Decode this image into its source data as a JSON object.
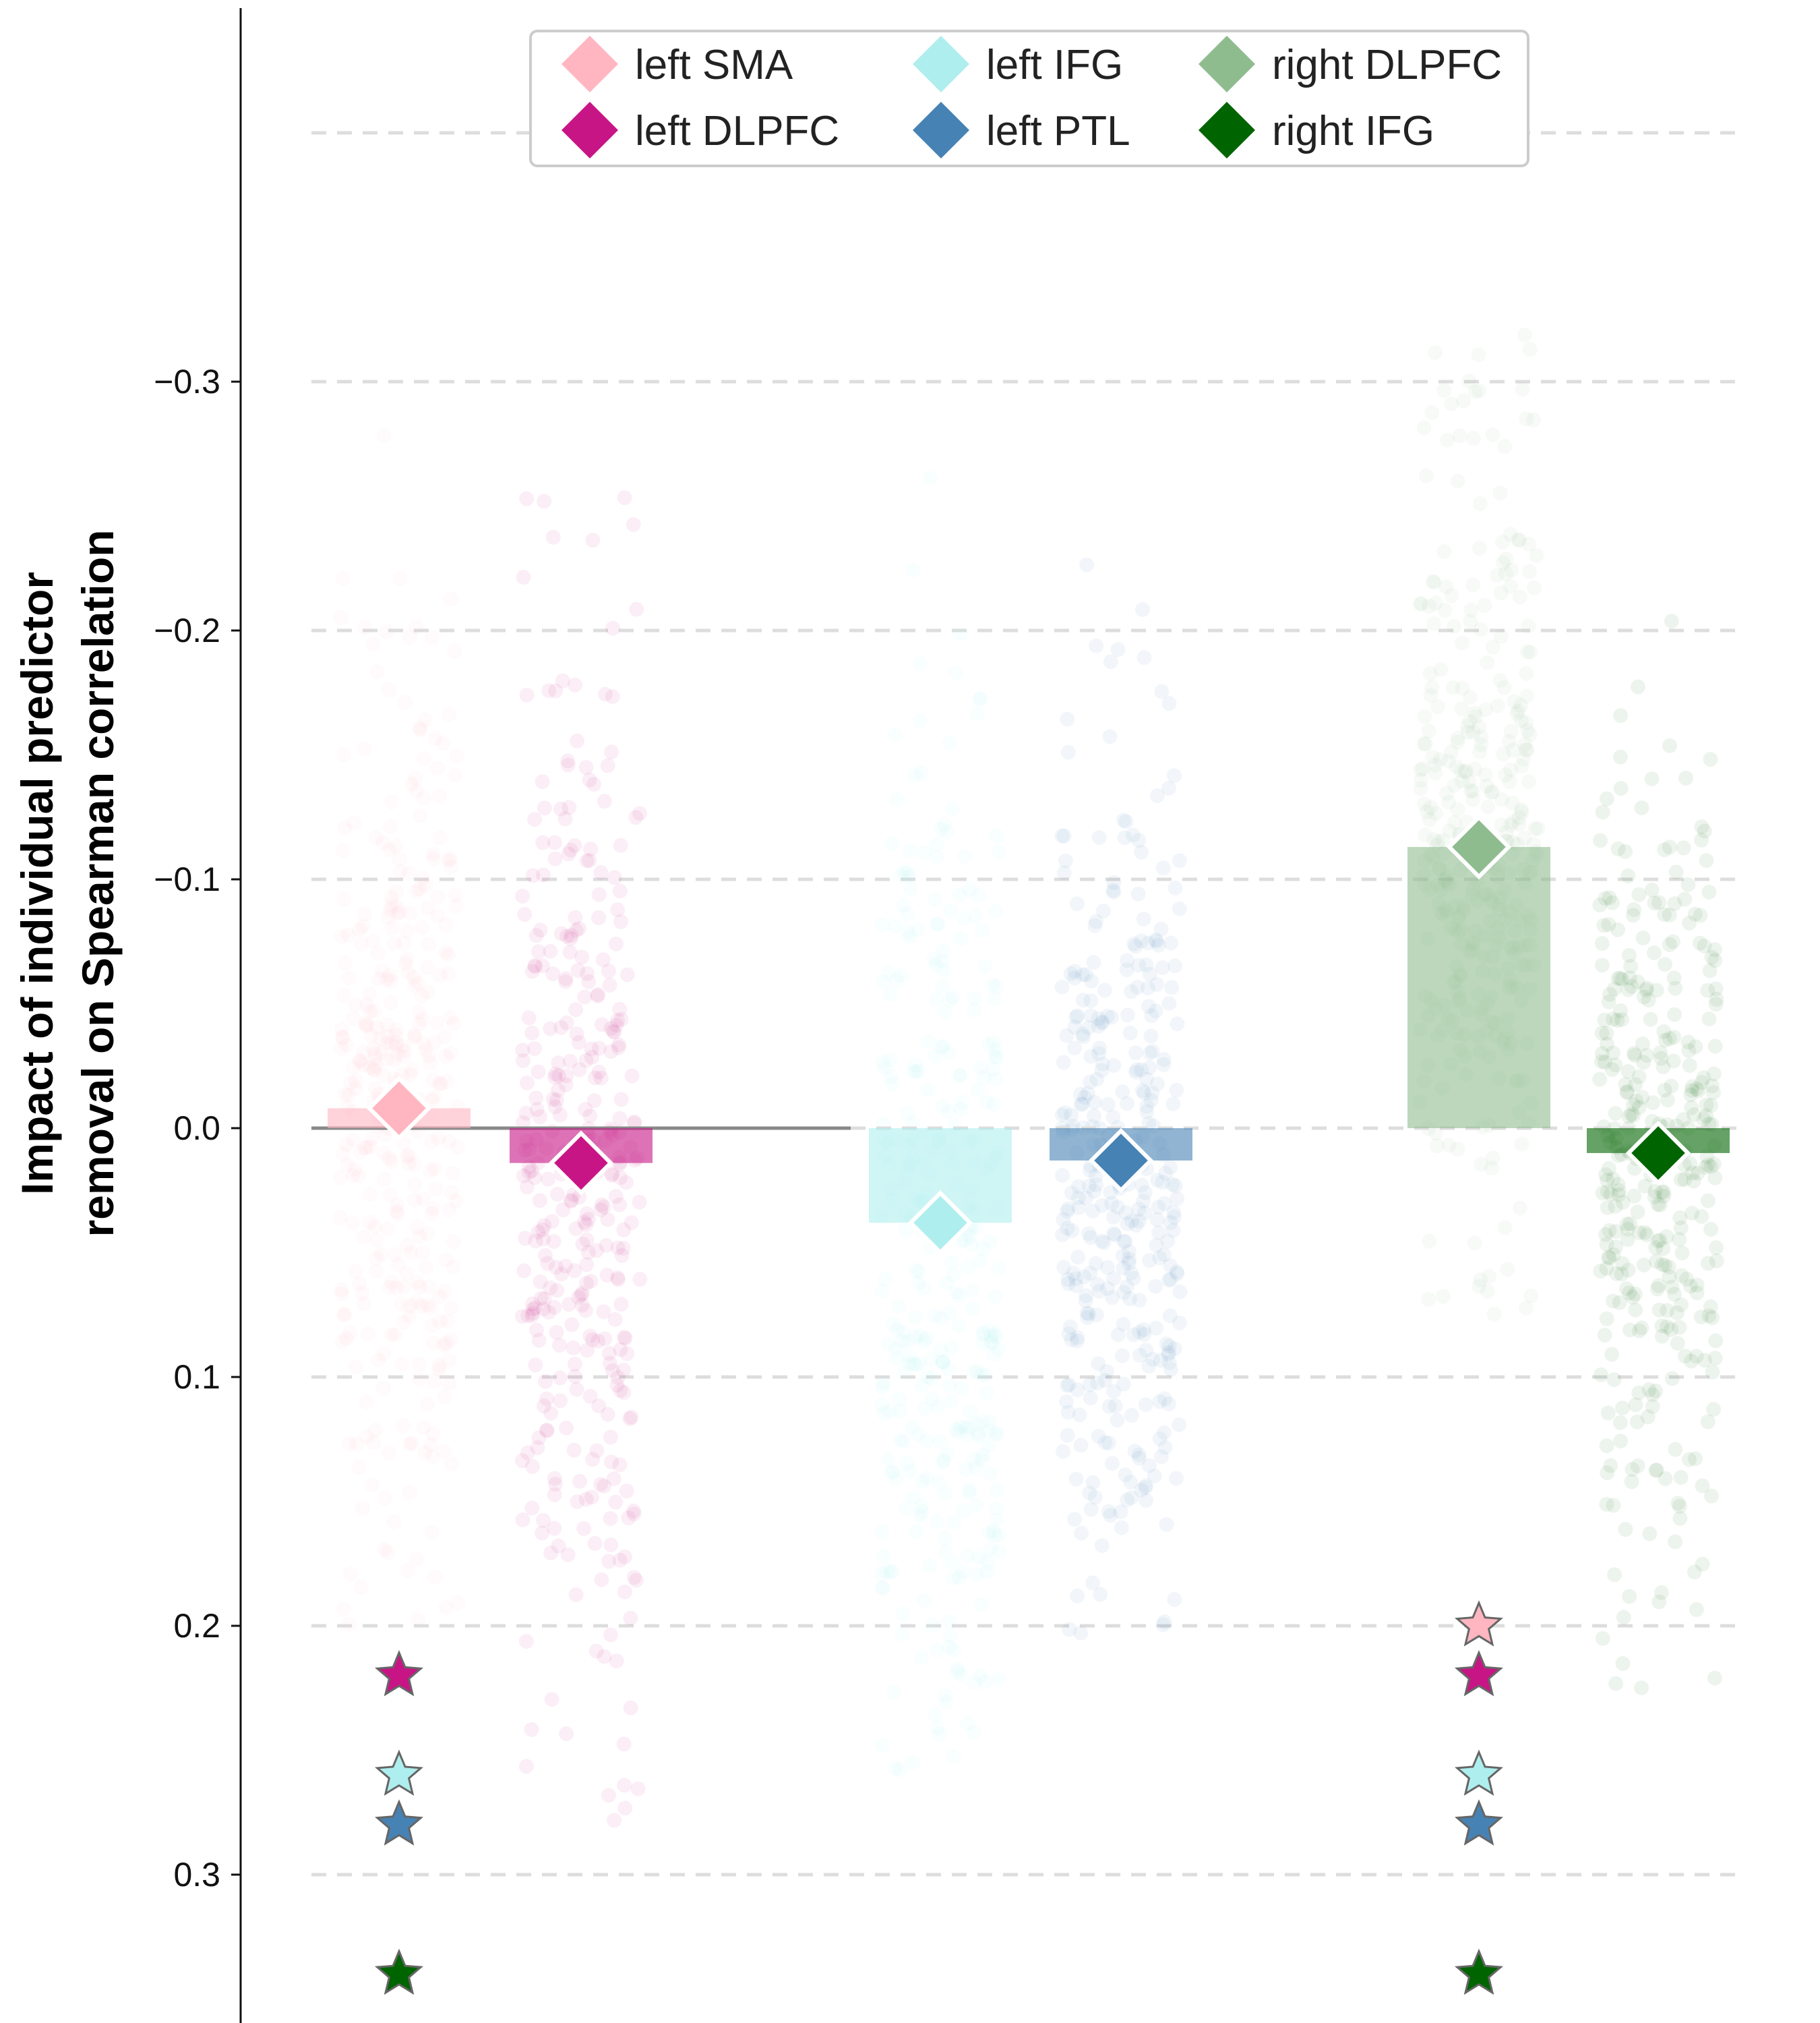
{
  "chart_data": {
    "type": "bar",
    "ylabel_lines": [
      "Impact of individual predictor",
      "removal on Spearman correlation"
    ],
    "y_inverted": true,
    "ylim": [
      -0.45,
      0.36
    ],
    "yticks": [
      {
        "value": -0.3,
        "label": "−0.3"
      },
      {
        "value": -0.2,
        "label": "−0.2"
      },
      {
        "value": -0.1,
        "label": "−0.1"
      },
      {
        "value": 0.0,
        "label": "0.0"
      },
      {
        "value": 0.1,
        "label": "0.1"
      },
      {
        "value": 0.2,
        "label": "0.2"
      },
      {
        "value": 0.3,
        "label": "0.3"
      }
    ],
    "grid": "horizontal dashed",
    "legend_position": "top-center",
    "series": [
      {
        "name": "left SMA",
        "color": "#FFB6C1",
        "mean": -0.008,
        "dist_range": [
          -0.28,
          0.2
        ],
        "group": 0,
        "slot": 0
      },
      {
        "name": "left DLPFC",
        "color": "#C71585",
        "mean": 0.014,
        "dist_range": [
          -0.26,
          0.28
        ],
        "group": 0,
        "slot": 1
      },
      {
        "name": "left IFG",
        "color": "#AFEEEE",
        "mean": 0.038,
        "dist_range": [
          -0.29,
          0.26
        ],
        "group": 1,
        "slot": 0
      },
      {
        "name": "left PTL",
        "color": "#4682B4",
        "mean": 0.013,
        "dist_range": [
          -0.23,
          0.21
        ],
        "group": 1,
        "slot": 1
      },
      {
        "name": "right DLPFC",
        "color": "#8FBC8F",
        "mean": -0.113,
        "dist_range": [
          -0.32,
          0.08
        ],
        "group": 2,
        "slot": 0
      },
      {
        "name": "right IFG",
        "color": "#006400",
        "mean": 0.01,
        "dist_range": [
          -0.21,
          0.23
        ],
        "group": 2,
        "slot": 1
      }
    ],
    "significance_stars": [
      {
        "column": "left SMA",
        "markers": [
          {
            "color": "#C71585",
            "y": 0.22
          },
          {
            "color": "#AFEEEE",
            "y": 0.26
          },
          {
            "color": "#4682B4",
            "y": 0.28
          },
          {
            "color": "#006400",
            "y": 0.34
          }
        ]
      },
      {
        "column": "right DLPFC",
        "markers": [
          {
            "color": "#FFB6C1",
            "y": 0.2
          },
          {
            "color": "#C71585",
            "y": 0.22
          },
          {
            "color": "#AFEEEE",
            "y": 0.26
          },
          {
            "color": "#4682B4",
            "y": 0.28
          },
          {
            "color": "#006400",
            "y": 0.34
          }
        ]
      }
    ]
  }
}
